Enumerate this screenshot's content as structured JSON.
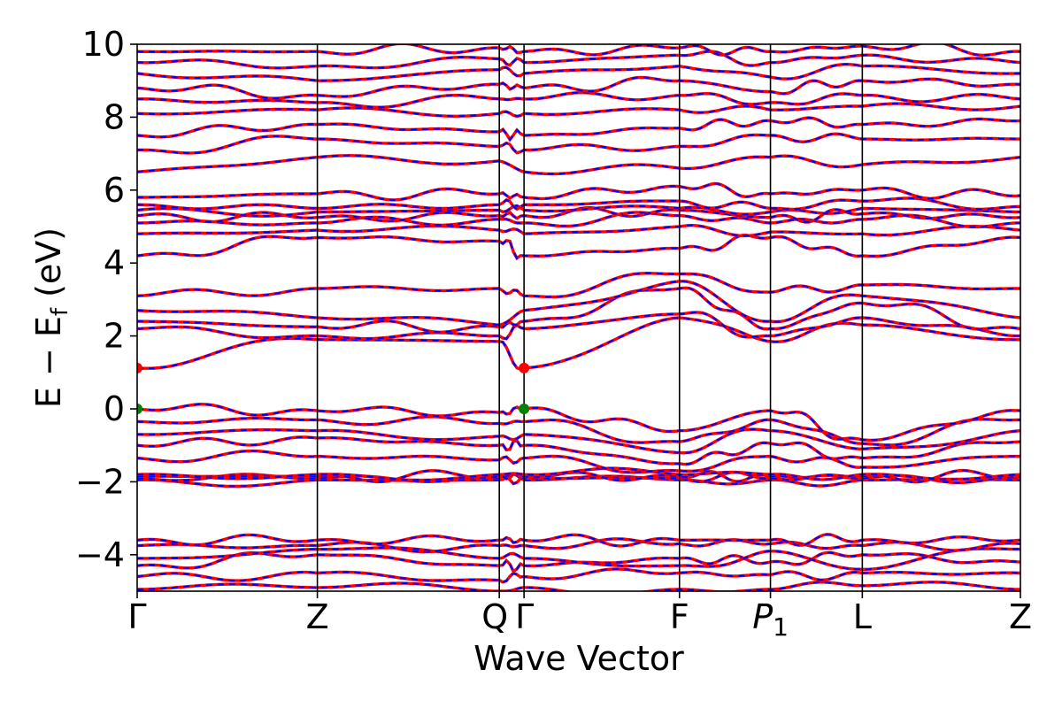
{
  "chart_data": {
    "type": "line",
    "title": "",
    "xlabel": "Wave Vector",
    "ylabel": "E − E",
    "ylabel_sub": "f",
    "ylabel_unit": "(eV)",
    "ylim": [
      -5,
      10
    ],
    "yticks": [
      {
        "value": -4,
        "label": "−4"
      },
      {
        "value": -2,
        "label": "−2"
      },
      {
        "value": 0,
        "label": "0"
      },
      {
        "value": 2,
        "label": "2"
      },
      {
        "value": 4,
        "label": "4"
      },
      {
        "value": 6,
        "label": "6"
      },
      {
        "value": 8,
        "label": "8"
      },
      {
        "value": 10,
        "label": "10"
      }
    ],
    "xlim": [
      0,
      1
    ],
    "kpoints": [
      {
        "label": "Γ",
        "value": 0.0
      },
      {
        "label": "Z",
        "value": 0.204
      },
      {
        "label": "Q",
        "value": 0.41
      },
      {
        "label": "Γ",
        "value": 0.438
      },
      {
        "label": "F",
        "value": 0.614
      },
      {
        "label": "P",
        "sub": "1",
        "value": 0.717
      },
      {
        "label": "L",
        "value": 0.821
      },
      {
        "label": "Z",
        "value": 1.0
      }
    ],
    "series_styles": [
      {
        "role": "band-solid",
        "color": "#ff0000"
      },
      {
        "role": "band-dashed",
        "color": "#0000ff"
      },
      {
        "role": "cbm-marker",
        "color": "#ff0000"
      },
      {
        "role": "vbm-marker",
        "color": "#008000"
      }
    ],
    "extrema": {
      "cbm": [
        {
          "k": 0.0,
          "E": 1.12
        },
        {
          "k": 0.438,
          "E": 1.12
        }
      ],
      "vbm": [
        {
          "k": 0.0,
          "E": 0.0
        },
        {
          "k": 0.438,
          "E": 0.0
        }
      ]
    },
    "bands": [
      [
        -4.95,
        -4.9,
        -5.0,
        -4.9,
        -4.95,
        -4.95,
        -4.85,
        -4.95
      ],
      [
        -4.6,
        -4.5,
        -4.7,
        -4.6,
        -4.5,
        -4.55,
        -4.5,
        -4.5
      ],
      [
        -4.3,
        -4.0,
        -4.3,
        -4.3,
        -4.1,
        -4.2,
        -4.0,
        -4.2
      ],
      [
        -4.1,
        -3.85,
        -4.1,
        -4.1,
        -4.3,
        -3.9,
        -4.4,
        -3.85
      ],
      [
        -3.75,
        -3.75,
        -3.75,
        -3.75,
        -3.7,
        -3.7,
        -3.75,
        -3.7
      ],
      [
        -3.6,
        -3.6,
        -3.6,
        -3.6,
        -3.6,
        -3.6,
        -3.6,
        -3.6
      ],
      [
        -1.95,
        -1.95,
        -1.95,
        -1.95,
        -1.95,
        -1.95,
        -1.95,
        -1.95
      ],
      [
        -1.9,
        -1.9,
        -1.9,
        -1.9,
        -1.9,
        -1.9,
        -1.9,
        -1.9
      ],
      [
        -1.85,
        -1.85,
        -1.85,
        -1.85,
        -1.85,
        -1.85,
        -1.85,
        -1.85
      ],
      [
        -1.8,
        -1.8,
        -1.8,
        -1.8,
        -1.8,
        -1.8,
        -1.8,
        -1.8
      ],
      [
        -1.35,
        -1.3,
        -1.4,
        -1.35,
        -1.7,
        -1.3,
        -1.6,
        -1.3
      ],
      [
        -1.0,
        -0.8,
        -1.0,
        -1.0,
        -1.5,
        -0.95,
        -1.35,
        -0.9
      ],
      [
        -0.7,
        -0.6,
        -0.75,
        -0.7,
        -1.2,
        -0.6,
        -1.1,
        -0.6
      ],
      [
        -0.35,
        -0.3,
        -0.4,
        -0.35,
        -0.9,
        -0.3,
        -0.95,
        -0.3
      ],
      [
        0.0,
        -0.05,
        -0.1,
        0.0,
        -0.6,
        -0.05,
        -0.85,
        -0.05
      ],
      [
        1.12,
        1.9,
        1.85,
        1.12,
        2.5,
        1.85,
        2.3,
        1.9
      ],
      [
        2.2,
        2.0,
        2.0,
        2.2,
        2.6,
        2.0,
        2.5,
        2.0
      ],
      [
        2.4,
        2.25,
        2.25,
        2.4,
        3.3,
        2.2,
        2.9,
        2.2
      ],
      [
        2.7,
        2.5,
        2.3,
        2.7,
        3.5,
        2.4,
        3.1,
        2.5
      ],
      [
        3.1,
        3.3,
        3.3,
        3.1,
        3.7,
        3.2,
        3.4,
        3.3
      ],
      [
        4.2,
        4.7,
        4.6,
        4.2,
        4.4,
        4.7,
        4.2,
        4.7
      ],
      [
        4.8,
        4.9,
        4.9,
        4.8,
        5.0,
        4.85,
        4.8,
        4.9
      ],
      [
        5.1,
        5.1,
        5.2,
        5.1,
        5.3,
        5.1,
        5.2,
        5.1
      ],
      [
        5.3,
        5.25,
        5.3,
        5.3,
        5.45,
        5.25,
        5.35,
        5.25
      ],
      [
        5.45,
        5.4,
        5.45,
        5.45,
        5.5,
        5.4,
        5.5,
        5.4
      ],
      [
        5.6,
        5.5,
        5.6,
        5.6,
        5.7,
        5.5,
        5.7,
        5.55
      ],
      [
        5.8,
        5.9,
        5.9,
        5.8,
        6.1,
        5.9,
        6.0,
        5.85
      ],
      [
        6.5,
        6.9,
        6.8,
        6.5,
        6.6,
        6.9,
        6.7,
        6.9
      ],
      [
        7.1,
        7.4,
        7.2,
        7.1,
        7.2,
        7.5,
        7.4,
        7.4
      ],
      [
        7.5,
        7.8,
        7.6,
        7.5,
        7.7,
        7.9,
        7.8,
        7.9
      ],
      [
        8.1,
        8.2,
        8.1,
        8.1,
        8.2,
        8.2,
        8.3,
        8.3
      ],
      [
        8.5,
        8.4,
        8.5,
        8.5,
        8.6,
        8.4,
        8.6,
        8.5
      ],
      [
        8.8,
        8.6,
        8.9,
        8.8,
        9.0,
        8.7,
        9.0,
        8.9
      ],
      [
        9.2,
        9.0,
        9.3,
        9.2,
        9.4,
        9.1,
        9.4,
        9.2
      ],
      [
        9.5,
        9.4,
        9.6,
        9.5,
        9.7,
        9.5,
        9.7,
        9.5
      ],
      [
        9.8,
        9.8,
        9.9,
        9.8,
        9.9,
        9.8,
        9.95,
        9.8
      ]
    ]
  }
}
